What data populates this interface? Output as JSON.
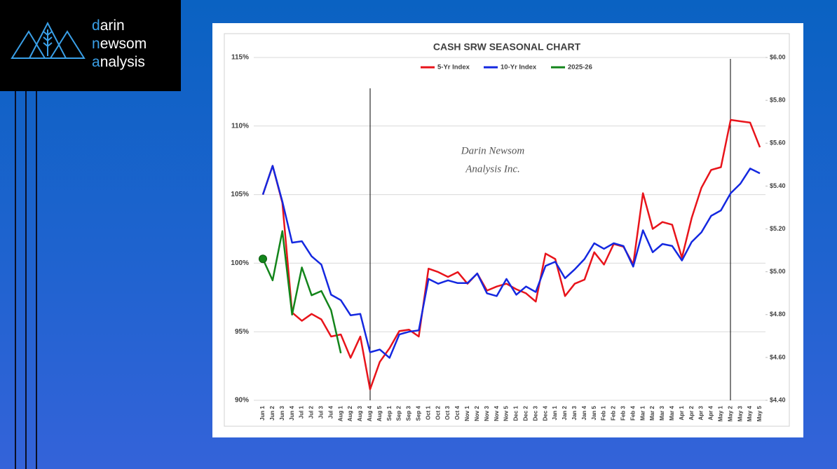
{
  "logo": {
    "lines": [
      {
        "accent": "d",
        "rest": "arin"
      },
      {
        "accent": "n",
        "rest": "ewsom"
      },
      {
        "accent": "a",
        "rest": "nalysis"
      }
    ]
  },
  "chart_data": {
    "type": "line",
    "title": "CASH SRW SEASONAL CHART",
    "annotations": [
      "Darin Newsom",
      "Analysis Inc."
    ],
    "categories": [
      "Jun 1",
      "Jun 2",
      "Jun 3",
      "Jun 4",
      "Jul 1",
      "Jul 2",
      "Jul 3",
      "Jul 4",
      "Aug 1",
      "Aug 2",
      "Aug 3",
      "Aug 4",
      "Aug 5",
      "Sep 1",
      "Sep 2",
      "Sep 3",
      "Sep 4",
      "Oct 1",
      "Oct 2",
      "Oct 3",
      "Oct 4",
      "Nov 1",
      "Nov 2",
      "Nov 3",
      "Nov 4",
      "Nov 5",
      "Dec 1",
      "Dec 2",
      "Dec 3",
      "Dec 4",
      "Jan 1",
      "Jan 2",
      "Jan 3",
      "Jan 4",
      "Jan 5",
      "Feb 1",
      "Feb 2",
      "Feb 3",
      "Feb 4",
      "Mar 1",
      "Mar 2",
      "Mar 3",
      "Mar 4",
      "Apr 1",
      "Apr 2",
      "Apr 3",
      "Apr 4",
      "May 1",
      "May 2",
      "May 3",
      "May 4",
      "May 5"
    ],
    "series": [
      {
        "name": "5-Yr Index",
        "color": "#e8141b",
        "values": [
          105.0,
          107.1,
          104.4,
          96.4,
          95.8,
          96.3,
          95.9,
          94.65,
          94.8,
          93.1,
          94.65,
          90.8,
          92.8,
          93.8,
          95.05,
          95.15,
          94.65,
          99.6,
          99.35,
          99.0,
          99.35,
          98.5,
          99.25,
          98.0,
          98.3,
          98.5,
          98.1,
          97.8,
          97.2,
          100.7,
          100.3,
          97.6,
          98.5,
          98.8,
          100.8,
          99.9,
          101.4,
          101.2,
          99.9,
          105.1,
          102.5,
          103.0,
          102.8,
          100.4,
          103.3,
          105.5,
          106.8,
          107.0,
          110.45,
          110.35,
          110.25,
          108.45
        ]
      },
      {
        "name": "10-Yr Index",
        "color": "#1428e0",
        "values": [
          105.0,
          107.1,
          104.5,
          101.5,
          101.6,
          100.5,
          99.9,
          97.7,
          97.3,
          96.2,
          96.3,
          93.5,
          93.7,
          93.1,
          94.8,
          95.0,
          95.1,
          98.85,
          98.5,
          98.75,
          98.55,
          98.55,
          99.25,
          97.8,
          97.6,
          98.85,
          97.7,
          98.3,
          97.9,
          99.8,
          100.1,
          98.9,
          99.55,
          100.3,
          101.45,
          101.05,
          101.45,
          101.25,
          99.75,
          102.4,
          100.8,
          101.4,
          101.25,
          100.2,
          101.55,
          102.25,
          103.45,
          103.85,
          105.1,
          105.8,
          106.9,
          106.55
        ]
      },
      {
        "name": "2025-26",
        "color": "#13851b",
        "axis": "y2",
        "values": [
          5.06,
          4.96,
          5.19,
          4.8,
          5.02,
          4.89,
          4.91,
          4.82,
          4.62,
          null,
          null,
          null,
          null,
          null,
          null,
          null,
          null,
          null,
          null,
          null,
          null,
          null,
          null,
          null,
          null,
          null,
          null,
          null,
          null,
          null,
          null,
          null,
          null,
          null,
          null,
          null,
          null,
          null,
          null,
          null,
          null,
          null,
          null,
          null,
          null,
          null,
          null,
          null,
          null,
          null,
          null,
          null
        ]
      }
    ],
    "ylim": [
      90,
      115
    ],
    "yticks": [
      {
        "value": 90,
        "label": "90%"
      },
      {
        "value": 95,
        "label": "95%"
      },
      {
        "value": 100,
        "label": "100%"
      },
      {
        "value": 105,
        "label": "105%"
      },
      {
        "value": 110,
        "label": "110%"
      },
      {
        "value": 115,
        "label": "115%"
      }
    ],
    "y2lim": [
      4.4,
      6.0
    ],
    "y2ticks": [
      {
        "value": 4.4,
        "label": "$4.40"
      },
      {
        "value": 4.6,
        "label": "$4.60"
      },
      {
        "value": 4.8,
        "label": "$4.80"
      },
      {
        "value": 5.0,
        "label": "$5.00"
      },
      {
        "value": 5.2,
        "label": "$5.20"
      },
      {
        "value": 5.4,
        "label": "$5.40"
      },
      {
        "value": 5.6,
        "label": "$5.60"
      },
      {
        "value": 5.8,
        "label": "$5.80"
      },
      {
        "value": 6.0,
        "label": "$6.00"
      }
    ],
    "grid": true,
    "legend": "top"
  }
}
